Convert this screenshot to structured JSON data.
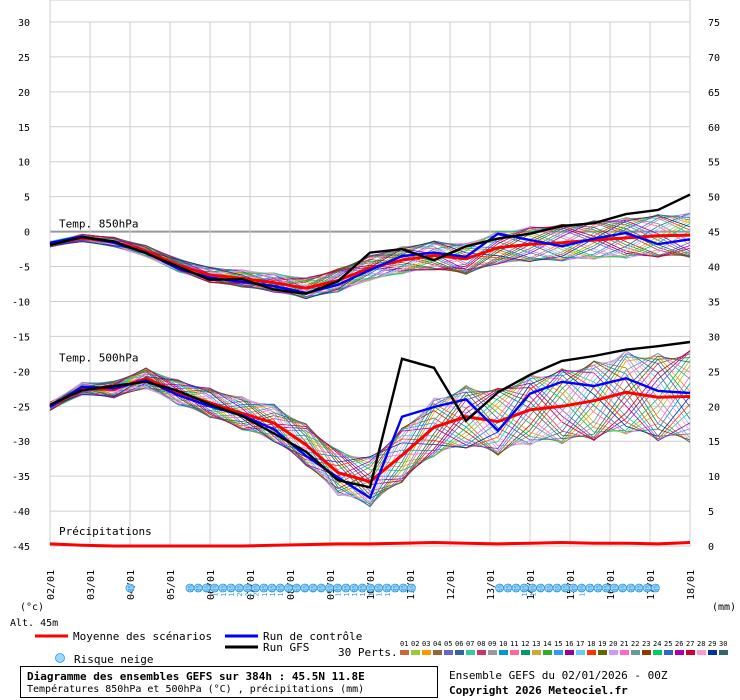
{
  "chart_data": {
    "type": "line",
    "x_dates": [
      "02/01",
      "03/01",
      "04/01",
      "05/01",
      "06/01",
      "07/01",
      "08/01",
      "09/01",
      "10/01",
      "11/01",
      "12/01",
      "13/01",
      "14/01",
      "15/01",
      "16/01",
      "17/01",
      "18/01"
    ],
    "left_axis": {
      "label": "(°c)",
      "ticks": [
        30,
        25,
        20,
        15,
        10,
        5,
        0,
        -5,
        -10,
        -15,
        -20,
        -25,
        -30,
        -35,
        -40,
        -45
      ],
      "range": [
        -45,
        30
      ]
    },
    "right_axis": {
      "label": "(mm)",
      "ticks": [
        75,
        70,
        65,
        60,
        55,
        50,
        45,
        40,
        35,
        30,
        25,
        20,
        15,
        10,
        5,
        0
      ],
      "range": [
        0,
        75
      ]
    },
    "sections": {
      "t850": "Temp. 850hPa",
      "t500": "Temp. 500hPa",
      "precip": "Précipitations"
    },
    "series": [
      {
        "name": "Moyenne des scénarios",
        "color": "#ff0000",
        "t850": [
          -1.8,
          -0.9,
          -1.5,
          -2.8,
          -4.8,
          -6.2,
          -6.7,
          -7.3,
          -8.1,
          -7.0,
          -5.2,
          -4.1,
          -3.4,
          -3.9,
          -2.3,
          -1.8,
          -1.6,
          -1.2,
          -0.9,
          -0.6,
          -0.5
        ],
        "t500": [
          -25.0,
          -22.5,
          -22.6,
          -21.0,
          -23.0,
          -24.5,
          -26.0,
          -27.4,
          -30.5,
          -34.5,
          -35.8,
          -32.0,
          -28.0,
          -26.5,
          -27.2,
          -25.5,
          -25.0,
          -24.2,
          -23.0,
          -23.7,
          -23.6
        ]
      },
      {
        "name": "Run de contrôle",
        "color": "#0000ff",
        "t850": [
          -1.6,
          -0.7,
          -1.6,
          -3.0,
          -5.3,
          -6.6,
          -7.2,
          -7.8,
          -8.8,
          -7.6,
          -5.5,
          -3.5,
          -3.0,
          -3.6,
          -0.3,
          -1.2,
          -2.1,
          -1.0,
          -0.2,
          -1.8,
          -1.1
        ],
        "t500": [
          -25.1,
          -22.2,
          -22.4,
          -21.3,
          -23.4,
          -25.0,
          -26.3,
          -28.3,
          -32.1,
          -35.2,
          -38.1,
          -26.5,
          -25.1,
          -24.0,
          -28.5,
          -23.2,
          -21.5,
          -22.1,
          -21.0,
          -22.8,
          -23.1
        ]
      },
      {
        "name": "Run GFS",
        "color": "#000000",
        "t850": [
          -1.9,
          -0.8,
          -1.4,
          -3.1,
          -5.0,
          -6.9,
          -6.8,
          -8.3,
          -8.9,
          -7.1,
          -3.0,
          -2.5,
          -4.1,
          -2.1,
          -1.0,
          -0.3,
          0.8,
          1.2,
          2.5,
          3.1,
          5.3
        ],
        "t500": [
          -24.8,
          -22.7,
          -22.1,
          -21.5,
          -22.8,
          -24.7,
          -26.4,
          -28.9,
          -31.5,
          -35.6,
          -36.6,
          -18.2,
          -19.5,
          -27.1,
          -23.0,
          -20.5,
          -18.5,
          -17.8,
          -16.9,
          -16.4,
          -15.8
        ]
      }
    ],
    "precip_mean": [
      0.3,
      0.1,
      0.0,
      0.0,
      0.0,
      0.0,
      0.0,
      0.1,
      0.2,
      0.3,
      0.3,
      0.4,
      0.5,
      0.4,
      0.3,
      0.4,
      0.5,
      0.4,
      0.4,
      0.3,
      0.5
    ],
    "snow_risk": {
      "label": "Risque neige",
      "values": [
        "3%",
        "3%",
        "3%",
        "6%",
        "13%",
        "13%",
        "16%",
        "20%",
        "23%",
        "20%",
        "13%",
        "16%",
        "10%",
        "6%",
        "6%",
        "6%",
        "6%",
        "6%",
        "6%",
        "13%",
        "13%",
        "10%",
        "13%",
        "13%",
        "10%",
        "13%",
        "3%",
        "3%",
        "6%",
        "6%",
        "3%",
        "3%",
        "10%",
        "10%",
        "6%",
        "6%",
        "6%",
        "6%",
        "3%",
        "10%",
        "6%",
        "3%",
        "3%",
        "3%",
        "6%",
        "3%",
        "3%",
        "3%",
        "3%"
      ]
    }
  },
  "meta": {
    "altitude": "Alt. 45m",
    "perts_label": "30 Perts.",
    "perts": [
      "01",
      "02",
      "03",
      "04",
      "05",
      "06",
      "07",
      "08",
      "09",
      "10",
      "11",
      "12",
      "13",
      "14",
      "15",
      "16",
      "17",
      "18",
      "19",
      "20",
      "21",
      "22",
      "23",
      "24",
      "25",
      "26",
      "27",
      "28",
      "29",
      "30"
    ],
    "pert_colors": [
      "#cc6633",
      "#99cc33",
      "#ff9900",
      "#996633",
      "#6666cc",
      "#336699",
      "#33cc99",
      "#cc3366",
      "#999999",
      "#0099cc",
      "#ff6699",
      "#009966",
      "#ccaa33",
      "#33aa33",
      "#3399ff",
      "#990099",
      "#66ccff",
      "#ff3300",
      "#666600",
      "#cc99ff",
      "#ff66cc",
      "#669999",
      "#993300",
      "#00cc66",
      "#3366cc",
      "#aa00aa",
      "#cc0033",
      "#ff99cc",
      "#003399",
      "#336666"
    ]
  },
  "legend": {
    "mean": "Moyenne des scénarios",
    "control": "Run de contrôle",
    "gfs": "Run GFS",
    "snow": "Risque neige"
  },
  "footer": {
    "title": "Diagramme des ensembles GEFS sur 384h : 45.5N 11.8E",
    "subtitle": "Températures 850hPa et 500hPa (°C) , précipitations (mm)",
    "ensemble_info": "Ensemble GEFS du 02/01/2026 - 00Z",
    "copyright": "Copyright 2026 Meteociel.fr"
  }
}
